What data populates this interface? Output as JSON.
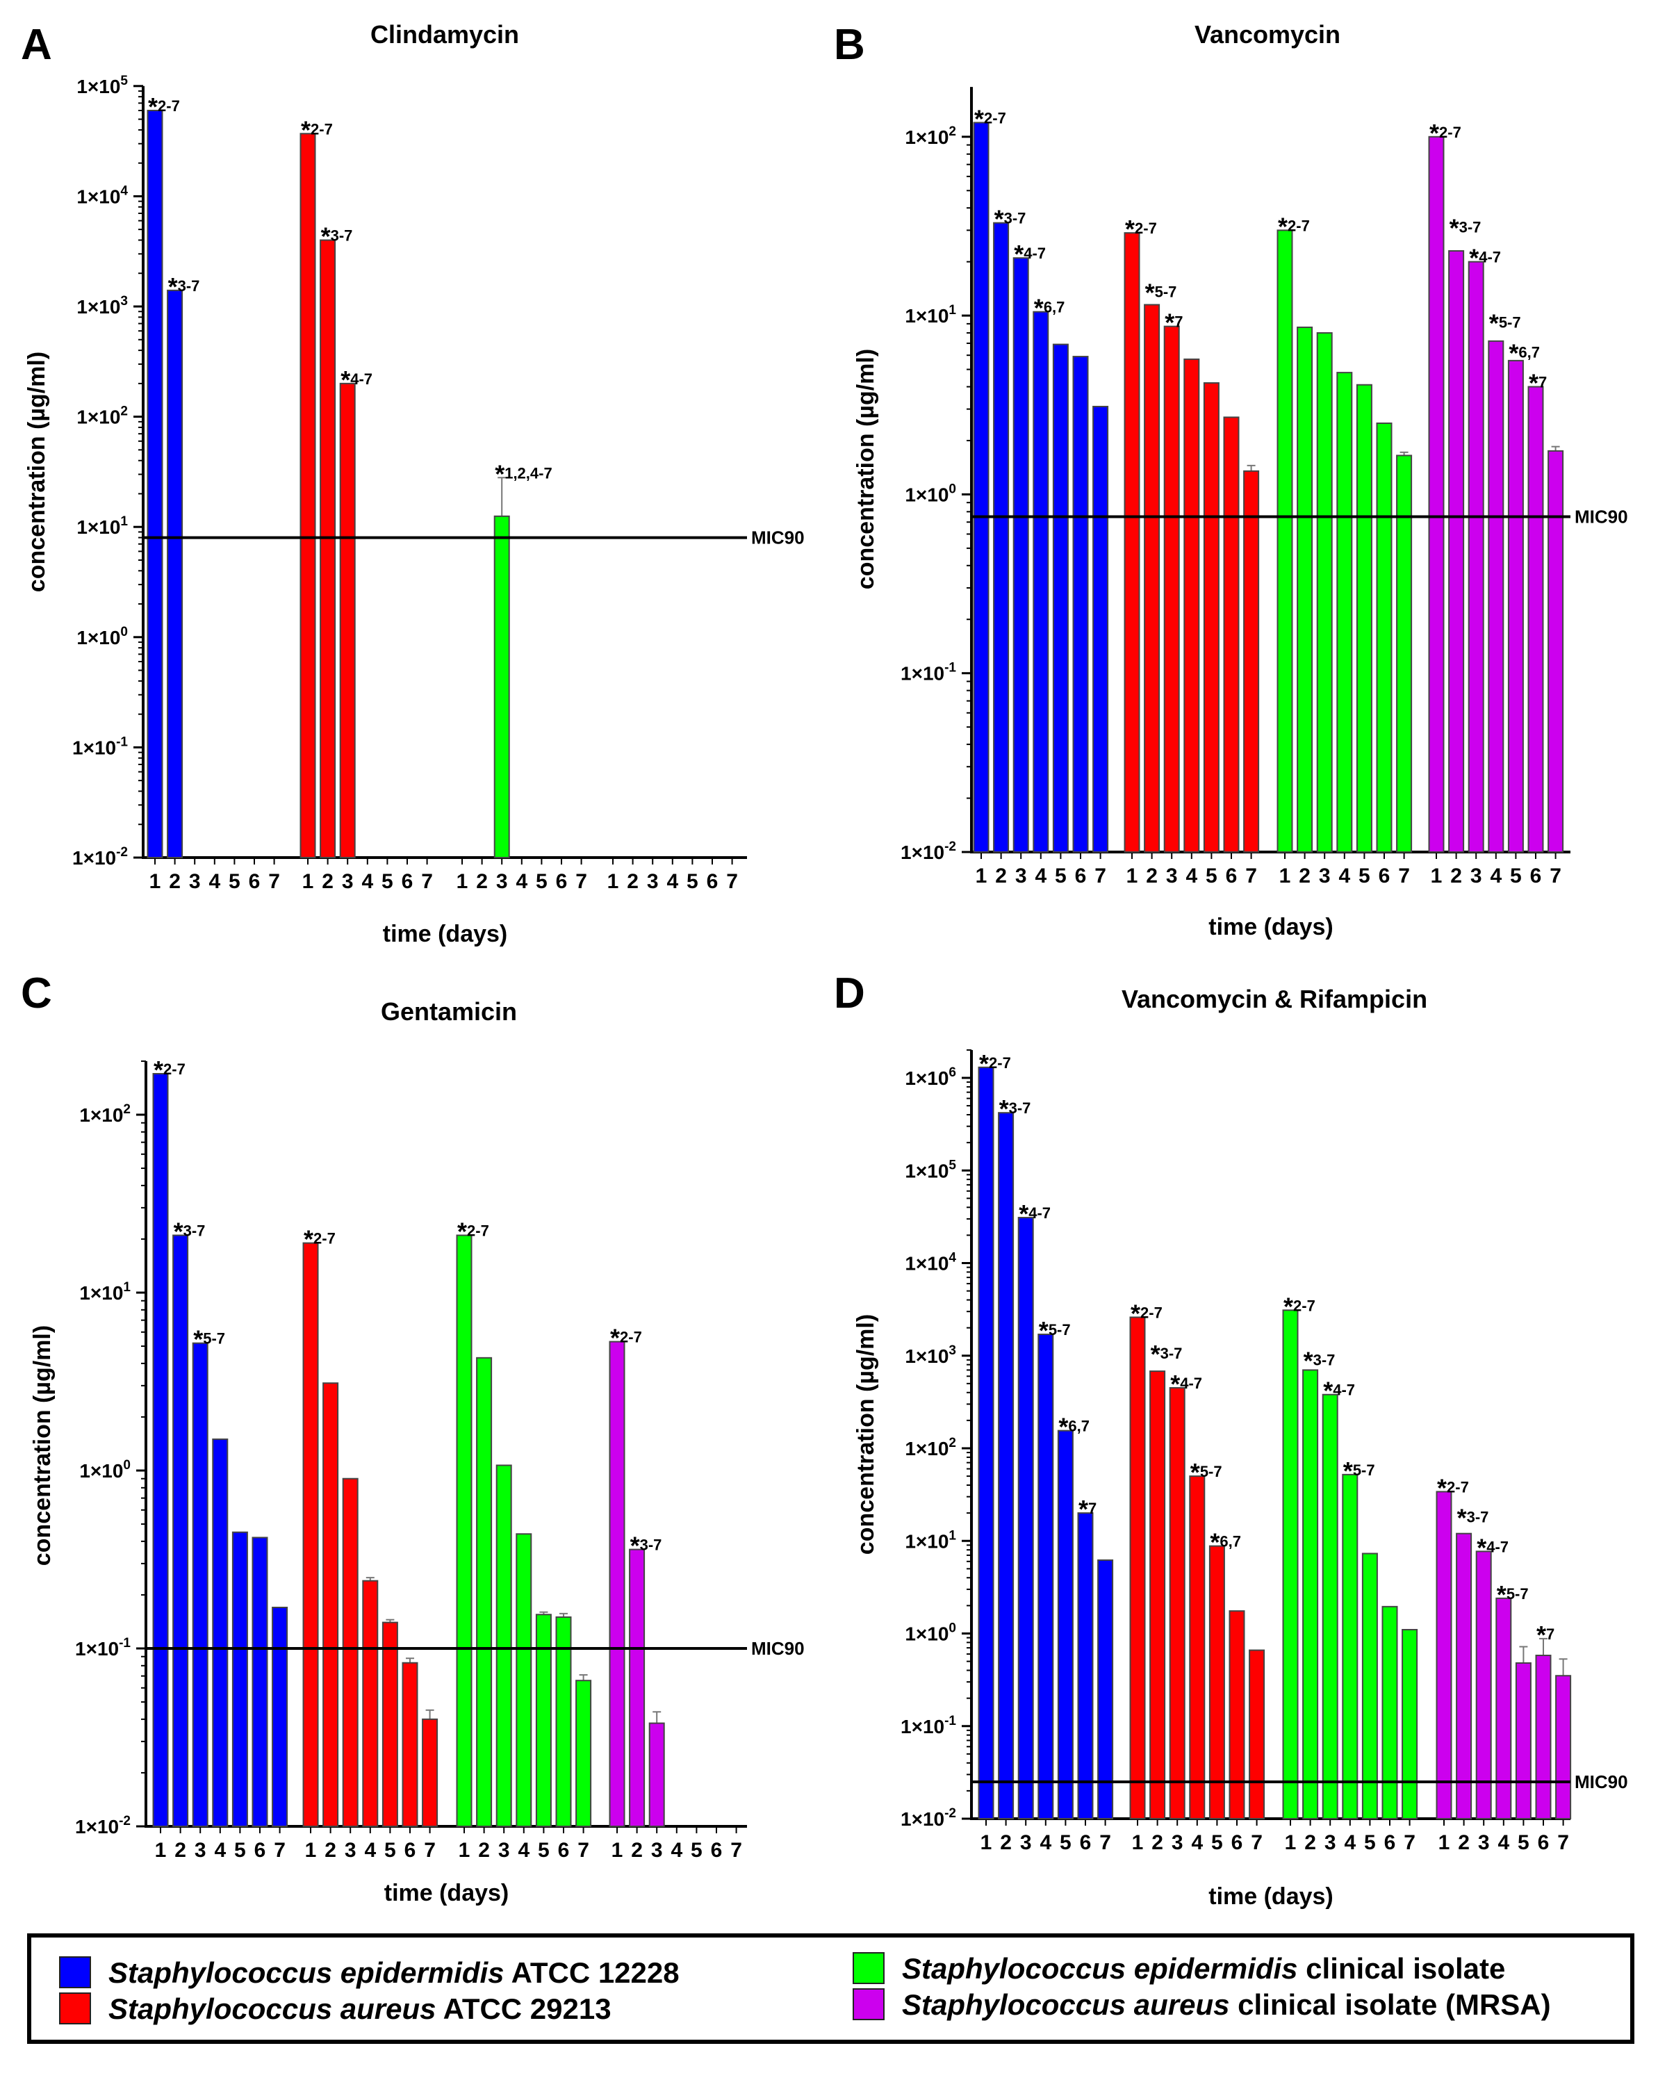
{
  "sig_marker": "*",
  "legend": [
    {
      "italic": "Staphylococcus epidermidis",
      "rest": " ATCC 12228",
      "color": "#0000ff"
    },
    {
      "italic": "Staphylococcus aureus",
      "rest": " ATCC 29213",
      "color": "#ff0000"
    },
    {
      "italic": "Staphylococcus epidermidis",
      "rest": " clinical isolate",
      "color": "#00ff00"
    },
    {
      "italic": "Staphylococcus aureus",
      "rest": " clinical isolate (MRSA)",
      "color": "#cc00ee"
    }
  ],
  "chart_data": [
    {
      "panel": "A",
      "type": "bar",
      "title": "Clindamycin",
      "xlabel": "time (days)",
      "ylabel": "concentration (µg/ml)",
      "y_scale": "log",
      "ylim": [
        0.01,
        100000
      ],
      "yticks": [
        {
          "base": "1×10",
          "exp": "5"
        },
        {
          "base": "1×10",
          "exp": "4"
        },
        {
          "base": "1×10",
          "exp": "3"
        },
        {
          "base": "1×10",
          "exp": "2"
        },
        {
          "base": "1×10",
          "exp": "1"
        },
        {
          "base": "1×10",
          "exp": "0"
        },
        {
          "base": "1×10",
          "exp": "-1"
        },
        {
          "base": "1×10",
          "exp": "-2"
        }
      ],
      "categories": [
        "1",
        "2",
        "3",
        "4",
        "5",
        "6",
        "7"
      ],
      "reference_line": {
        "label": "MIC90",
        "value": 8
      },
      "series": [
        {
          "name": "Staphylococcus epidermidis ATCC 12228",
          "color": "#0000ff",
          "values": [
            60000,
            1400,
            null,
            null,
            null,
            null,
            null
          ],
          "error_upper": [
            null,
            null,
            null,
            null,
            null,
            null,
            null
          ],
          "significance": [
            "2-7",
            "3-7",
            null,
            null,
            null,
            null,
            null
          ]
        },
        {
          "name": "Staphylococcus aureus ATCC 29213",
          "color": "#ff0000",
          "values": [
            37000,
            4000,
            200,
            null,
            null,
            null,
            null
          ],
          "error_upper": [
            null,
            null,
            null,
            null,
            null,
            null,
            null
          ],
          "significance": [
            "2-7",
            "3-7",
            "4-7",
            null,
            null,
            null,
            null
          ]
        },
        {
          "name": "Staphylococcus epidermidis clinical isolate",
          "color": "#00ff00",
          "values": [
            null,
            null,
            12.5,
            null,
            null,
            null,
            null
          ],
          "error_upper": [
            null,
            null,
            28,
            null,
            null,
            null,
            null
          ],
          "significance": [
            null,
            null,
            "1,2,4-7",
            null,
            null,
            null,
            null
          ]
        },
        {
          "name": "Staphylococcus aureus clinical isolate (MRSA)",
          "color": "#cc00ee",
          "values": [
            null,
            null,
            null,
            null,
            null,
            null,
            null
          ],
          "error_upper": [
            null,
            null,
            null,
            null,
            null,
            null,
            null
          ],
          "significance": [
            null,
            null,
            null,
            null,
            null,
            null,
            null
          ]
        }
      ]
    },
    {
      "panel": "B",
      "type": "bar",
      "title": "Vancomycin",
      "xlabel": "time (days)",
      "ylabel": "concentration (µg/ml)",
      "y_scale": "log",
      "ylim": [
        0.01,
        190
      ],
      "yticks": [
        {
          "base": "1×10",
          "exp": "2"
        },
        {
          "base": "1×10",
          "exp": "1"
        },
        {
          "base": "1×10",
          "exp": "0"
        },
        {
          "base": "1×10",
          "exp": "-1"
        },
        {
          "base": "1×10",
          "exp": "-2"
        }
      ],
      "categories": [
        "1",
        "2",
        "3",
        "4",
        "5",
        "6",
        "7"
      ],
      "reference_line": {
        "label": "MIC90",
        "value": 0.75
      },
      "series": [
        {
          "name": "Staphylococcus epidermidis ATCC 12228",
          "color": "#0000ff",
          "values": [
            120,
            33,
            21,
            10.5,
            6.9,
            5.9,
            3.1
          ],
          "error_upper": [
            null,
            null,
            null,
            null,
            null,
            null,
            null
          ],
          "significance": [
            "2-7",
            "3-7",
            "4-7",
            "6,7",
            null,
            null,
            null
          ]
        },
        {
          "name": "Staphylococcus aureus ATCC 29213",
          "color": "#ff0000",
          "values": [
            29,
            11.5,
            8.7,
            5.7,
            4.2,
            2.7,
            1.35
          ],
          "error_upper": [
            null,
            null,
            null,
            null,
            null,
            null,
            1.45
          ],
          "significance": [
            "2-7",
            "5-7",
            "7",
            null,
            null,
            null,
            null
          ]
        },
        {
          "name": "Staphylococcus epidermidis clinical isolate",
          "color": "#00ff00",
          "values": [
            30,
            8.6,
            8.0,
            4.8,
            4.1,
            2.5,
            1.65
          ],
          "error_upper": [
            null,
            null,
            null,
            null,
            null,
            null,
            1.72
          ],
          "significance": [
            "2-7",
            null,
            null,
            null,
            null,
            null,
            null
          ]
        },
        {
          "name": "Staphylococcus aureus clinical isolate (MRSA)",
          "color": "#cc00ee",
          "values": [
            100,
            23,
            20,
            7.2,
            5.6,
            4.0,
            1.75
          ],
          "error_upper": [
            null,
            null,
            null,
            null,
            null,
            null,
            1.85
          ],
          "significance": [
            "2-7",
            "3-7",
            "4-7",
            "5-7",
            "6,7",
            "7",
            null
          ]
        }
      ]
    },
    {
      "panel": "C",
      "type": "bar",
      "title": "Gentamicin",
      "xlabel": "time (days)",
      "ylabel": "concentration (µg/ml)",
      "y_scale": "log",
      "ylim": [
        0.01,
        200
      ],
      "yticks": [
        {
          "base": "1×10",
          "exp": "2"
        },
        {
          "base": "1×10",
          "exp": "1"
        },
        {
          "base": "1×10",
          "exp": "0"
        },
        {
          "base": "1×10",
          "exp": "-1"
        },
        {
          "base": "1×10",
          "exp": "-2"
        }
      ],
      "categories": [
        "1",
        "2",
        "3",
        "4",
        "5",
        "6",
        "7"
      ],
      "reference_line": {
        "label": "MIC90",
        "value": 0.1
      },
      "series": [
        {
          "name": "Staphylococcus epidermidis ATCC 12228",
          "color": "#0000ff",
          "values": [
            170,
            21,
            5.2,
            1.5,
            0.45,
            0.42,
            0.17
          ],
          "error_upper": [
            null,
            null,
            null,
            null,
            null,
            null,
            null
          ],
          "significance": [
            "2-7",
            "3-7",
            "5-7",
            null,
            null,
            null,
            null
          ]
        },
        {
          "name": "Staphylococcus aureus ATCC 29213",
          "color": "#ff0000",
          "values": [
            19,
            3.1,
            0.9,
            0.24,
            0.14,
            0.083,
            0.04
          ],
          "error_upper": [
            null,
            null,
            null,
            0.25,
            0.145,
            0.088,
            0.045
          ],
          "significance": [
            "2-7",
            null,
            null,
            null,
            null,
            null,
            null
          ]
        },
        {
          "name": "Staphylococcus epidermidis clinical isolate",
          "color": "#00ff00",
          "values": [
            21,
            4.3,
            1.07,
            0.44,
            0.155,
            0.15,
            0.066
          ],
          "error_upper": [
            null,
            null,
            null,
            null,
            0.16,
            0.157,
            0.071
          ],
          "significance": [
            "2-7",
            null,
            null,
            null,
            null,
            null,
            null
          ]
        },
        {
          "name": "Staphylococcus aureus clinical isolate (MRSA)",
          "color": "#cc00ee",
          "values": [
            5.3,
            0.36,
            0.038,
            null,
            null,
            null,
            null
          ],
          "error_upper": [
            null,
            null,
            0.044,
            null,
            null,
            null,
            null
          ],
          "significance": [
            "2-7",
            "3-7",
            null,
            null,
            null,
            null,
            null
          ]
        }
      ]
    },
    {
      "panel": "D",
      "type": "bar",
      "title": "Vancomycin & Rifampicin",
      "xlabel": "time (days)",
      "ylabel": "concentration (µg/ml)",
      "y_scale": "log",
      "ylim": [
        0.01,
        2000000
      ],
      "yticks": [
        {
          "base": "1×10",
          "exp": "6"
        },
        {
          "base": "1×10",
          "exp": "5"
        },
        {
          "base": "1×10",
          "exp": "4"
        },
        {
          "base": "1×10",
          "exp": "3"
        },
        {
          "base": "1×10",
          "exp": "2"
        },
        {
          "base": "1×10",
          "exp": "1"
        },
        {
          "base": "1×10",
          "exp": "0"
        },
        {
          "base": "1×10",
          "exp": "-1"
        },
        {
          "base": "1×10",
          "exp": "-2"
        }
      ],
      "categories": [
        "1",
        "2",
        "3",
        "4",
        "5",
        "6",
        "7"
      ],
      "reference_line": {
        "label": "MIC90",
        "value": 0.025
      },
      "series": [
        {
          "name": "Staphylococcus epidermidis ATCC 12228",
          "color": "#0000ff",
          "values": [
            1300000,
            420000,
            31000,
            1700,
            155,
            20,
            6.2
          ],
          "error_upper": [
            null,
            null,
            null,
            null,
            null,
            null,
            null
          ],
          "significance": [
            "2-7",
            "3-7",
            "4-7",
            "5-7",
            "6,7",
            "7",
            null
          ]
        },
        {
          "name": "Staphylococcus aureus ATCC 29213",
          "color": "#ff0000",
          "values": [
            2600,
            680,
            450,
            50,
            8.8,
            1.75,
            0.66
          ],
          "error_upper": [
            null,
            null,
            null,
            null,
            null,
            null,
            null
          ],
          "significance": [
            "2-7",
            "3-7",
            "4-7",
            "5-7",
            "6,7",
            null,
            null
          ]
        },
        {
          "name": "Staphylococcus epidermidis clinical isolate",
          "color": "#00ff00",
          "values": [
            3100,
            700,
            380,
            52,
            7.3,
            1.95,
            1.1
          ],
          "error_upper": [
            null,
            null,
            null,
            null,
            null,
            null,
            null
          ],
          "significance": [
            "2-7",
            "3-7",
            "4-7",
            "5-7",
            null,
            null,
            null
          ]
        },
        {
          "name": "Staphylococcus aureus clinical isolate (MRSA)",
          "color": "#cc00ee",
          "values": [
            34,
            12,
            7.7,
            2.4,
            0.48,
            0.58,
            0.35
          ],
          "error_upper": [
            null,
            null,
            null,
            null,
            0.72,
            0.88,
            0.53
          ],
          "significance": [
            "2-7",
            "3-7",
            "4-7",
            "5-7",
            null,
            "7",
            null
          ]
        }
      ]
    }
  ]
}
